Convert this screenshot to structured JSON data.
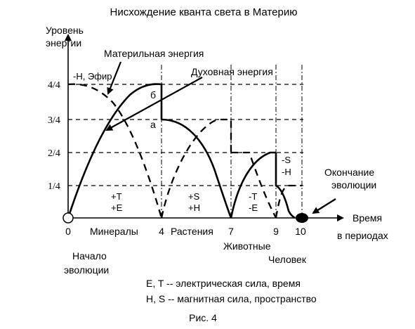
{
  "title": "Нисхождение кванта света в Материю",
  "y_axis": {
    "label_line1": "Уровень",
    "label_line2": "энергии",
    "ticks": [
      "1/4",
      "2/4",
      "3/4",
      "4/4"
    ]
  },
  "x_axis": {
    "label_line1": "Время",
    "label_line2": "в периодах",
    "ticks": [
      "0",
      "4",
      "7",
      "9",
      "10"
    ],
    "segments": [
      "Минералы",
      "Растения",
      "Животные",
      "Человек"
    ]
  },
  "callouts": {
    "material_energy": "Материльная энергия",
    "spiritual_energy": "Духовная энергия",
    "h_ether": "-Н, Эфир",
    "point_b": "б",
    "point_a": "а",
    "start_line1": "Начало",
    "start_line2": "эволюции",
    "end_line1": "Окончание",
    "end_line2": "эволюции"
  },
  "region_labels": {
    "r1_top": "+T",
    "r1_bottom": "+E",
    "r2_top": "+S",
    "r2_bottom": "+H",
    "r3_top": "-T",
    "r3_bottom": "-E",
    "r4_top": "-S",
    "r4_bottom": "-H"
  },
  "legend": {
    "line1": "E, T -- электрическая сила, время",
    "line2": "H, S -- магнитная сила, пространство"
  },
  "caption": "Рис. 4"
}
